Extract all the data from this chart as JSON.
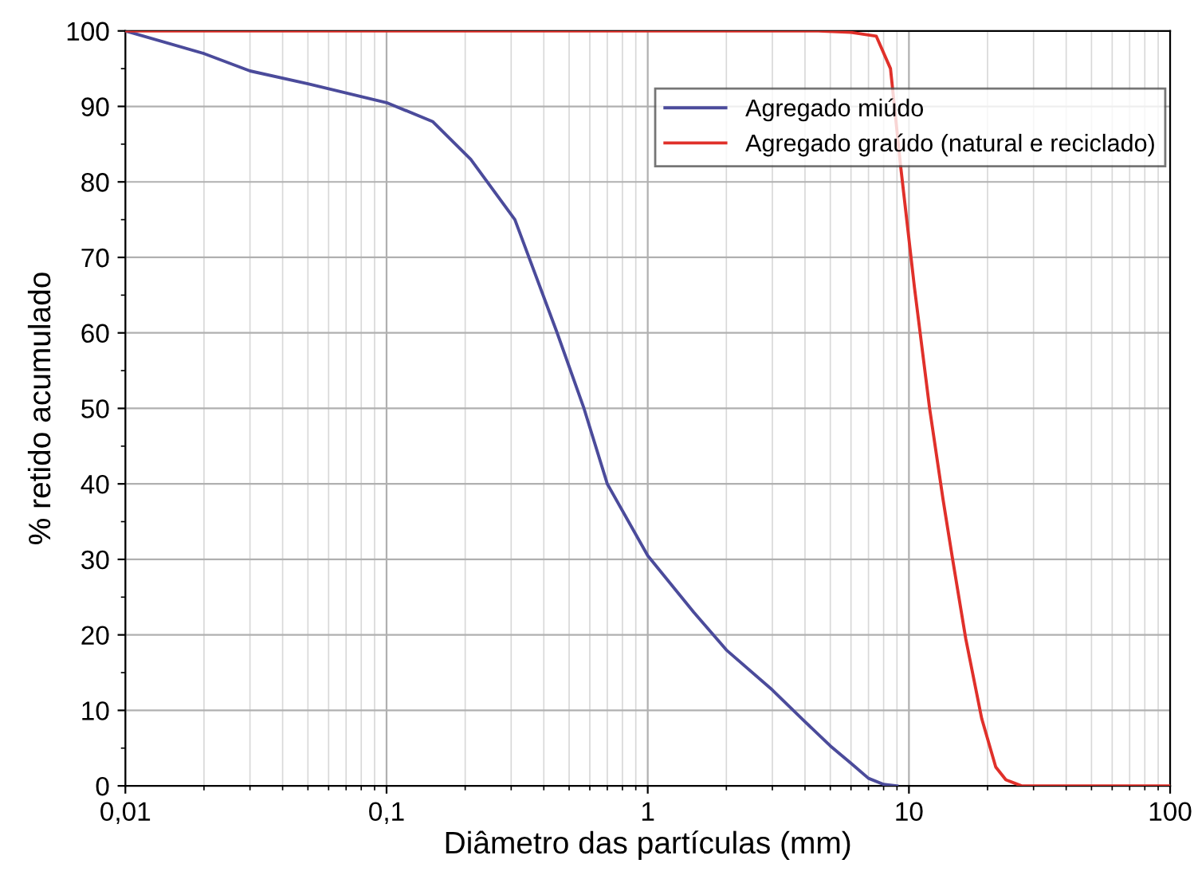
{
  "chart_data": {
    "type": "line",
    "xlabel": "Diâmetro das partículas (mm)",
    "ylabel": "% retido acumulado",
    "log": "x",
    "grid": true,
    "legend": "top right",
    "line_style": "solid",
    "marker": "none",
    "xlim": [
      0.01,
      100
    ],
    "ylim": [
      0,
      100
    ],
    "xticks": [
      {
        "value": 0.01,
        "label": "0,01"
      },
      {
        "value": 0.1,
        "label": "0,1"
      },
      1,
      10,
      100
    ],
    "yticks": [
      0,
      10,
      20,
      30,
      40,
      50,
      60,
      70,
      80,
      90,
      100
    ],
    "series": [
      {
        "name": "Agregado miúdo",
        "color": "#4b4b9b",
        "x": [
          0.01,
          0.02,
          0.03,
          0.05,
          0.1,
          0.15,
          0.21,
          0.31,
          0.45,
          0.57,
          0.7,
          1,
          1.5,
          2,
          3,
          4,
          5,
          6,
          7,
          8,
          9
        ],
        "values": [
          100,
          97,
          94.7,
          93,
          90.5,
          88,
          83,
          75,
          60,
          50,
          40,
          30.5,
          23,
          18,
          12.7,
          8.5,
          5.3,
          3,
          1,
          0.2,
          0
        ]
      },
      {
        "name": "Agregado graúdo (natural e reciclado)",
        "color": "#e0302a",
        "x": [
          0.01,
          1,
          4.5,
          6,
          7.5,
          8.5,
          9.3,
          10.5,
          12,
          13.5,
          14.7,
          16.5,
          19,
          21.5,
          23.5,
          27,
          40,
          100
        ],
        "values": [
          100,
          100,
          100,
          99.8,
          99.3,
          95,
          82,
          66,
          50,
          38,
          30,
          19.5,
          8.9,
          2.5,
          0.8,
          0,
          0,
          0
        ]
      }
    ]
  }
}
